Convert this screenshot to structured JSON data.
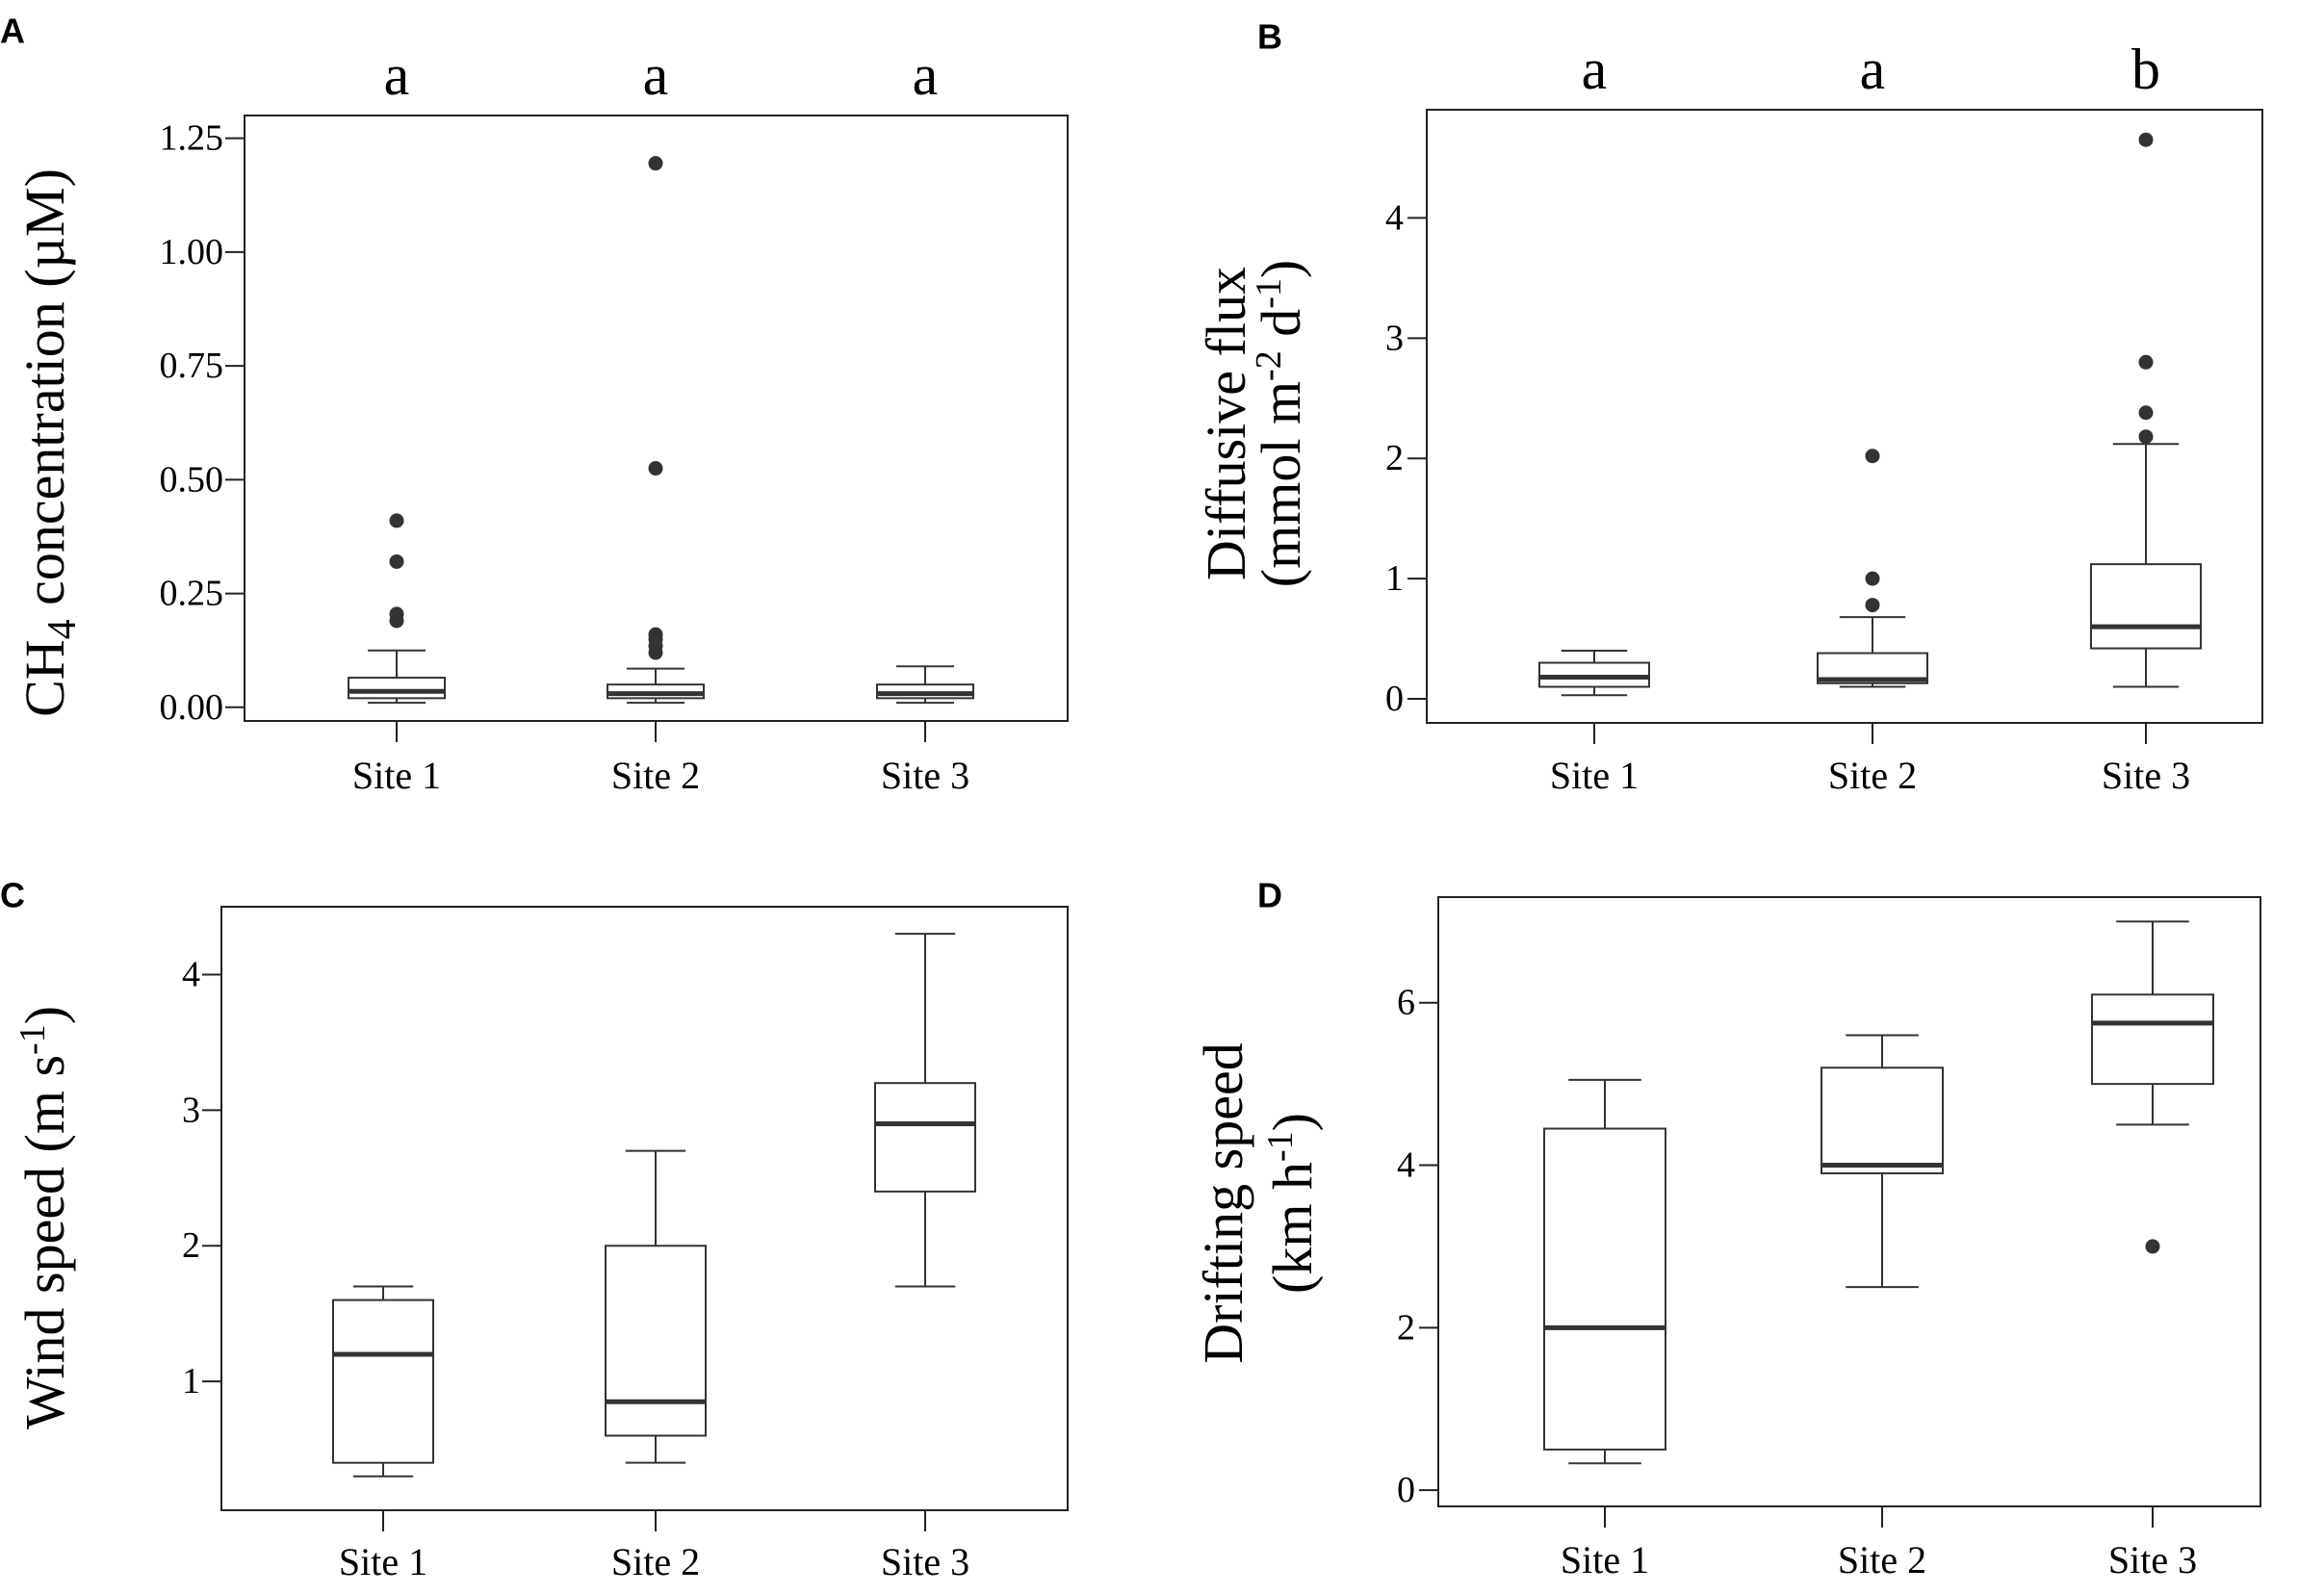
{
  "chart_data": [
    {
      "type": "box",
      "panel": "A",
      "ylabel_parts": [
        "CH",
        "4",
        " concentration (µM)"
      ],
      "categories": [
        "Site 1",
        "Site 2",
        "Site 3"
      ],
      "yticks": [
        "0.00",
        "0.25",
        "0.50",
        "0.75",
        "1.00",
        "1.25"
      ],
      "ylim": [
        -0.03,
        1.3
      ],
      "significance": [
        "a",
        "a",
        "a"
      ],
      "boxes": [
        {
          "whisker_low": 0.01,
          "q1": 0.02,
          "median": 0.035,
          "q3": 0.065,
          "whisker_high": 0.125,
          "outliers": [
            0.19,
            0.205,
            0.32,
            0.41
          ]
        },
        {
          "whisker_low": 0.01,
          "q1": 0.02,
          "median": 0.03,
          "q3": 0.05,
          "whisker_high": 0.085,
          "outliers": [
            0.12,
            0.135,
            0.15,
            0.16,
            0.525,
            1.195
          ]
        },
        {
          "whisker_low": 0.01,
          "q1": 0.02,
          "median": 0.03,
          "q3": 0.05,
          "whisker_high": 0.09,
          "outliers": []
        }
      ]
    },
    {
      "type": "box",
      "panel": "B",
      "ylabel_parts": [
        "Diffusive flux",
        "(mmol m",
        "-2",
        " d",
        "-1",
        ")"
      ],
      "categories": [
        "Site 1",
        "Site 2",
        "Site 3"
      ],
      "yticks": [
        "0",
        "1",
        "2",
        "3",
        "4"
      ],
      "ylim": [
        -0.2,
        4.9
      ],
      "significance": [
        "a",
        "a",
        "b"
      ],
      "boxes": [
        {
          "whisker_low": 0.03,
          "q1": 0.1,
          "median": 0.18,
          "q3": 0.3,
          "whisker_high": 0.4,
          "outliers": []
        },
        {
          "whisker_low": 0.1,
          "q1": 0.13,
          "median": 0.16,
          "q3": 0.38,
          "whisker_high": 0.68,
          "outliers": [
            0.78,
            1.0,
            2.02
          ]
        },
        {
          "whisker_low": 0.1,
          "q1": 0.42,
          "median": 0.6,
          "q3": 1.12,
          "whisker_high": 2.12,
          "outliers": [
            2.18,
            2.38,
            2.8,
            4.65
          ]
        }
      ]
    },
    {
      "type": "box",
      "panel": "C",
      "ylabel_parts": [
        "Wind speed (m s",
        "-1",
        ")"
      ],
      "categories": [
        "Site 1",
        "Site 2",
        "Site 3"
      ],
      "yticks": [
        "1",
        "2",
        "3",
        "4"
      ],
      "ylim": [
        0.05,
        4.5
      ],
      "significance": [],
      "boxes": [
        {
          "whisker_low": 0.3,
          "q1": 0.4,
          "median": 1.2,
          "q3": 1.6,
          "whisker_high": 1.7,
          "outliers": []
        },
        {
          "whisker_low": 0.4,
          "q1": 0.6,
          "median": 0.85,
          "q3": 2.0,
          "whisker_high": 2.7,
          "outliers": []
        },
        {
          "whisker_low": 1.7,
          "q1": 2.4,
          "median": 2.9,
          "q3": 3.2,
          "whisker_high": 4.3,
          "outliers": []
        }
      ]
    },
    {
      "type": "box",
      "panel": "D",
      "ylabel_parts": [
        "Drifting speed",
        "(km h",
        "-1",
        ")"
      ],
      "categories": [
        "Site 1",
        "Site 2",
        "Site 3"
      ],
      "yticks": [
        "0",
        "2",
        "4",
        "6"
      ],
      "ylim": [
        -0.2,
        7.3
      ],
      "significance": [],
      "boxes": [
        {
          "whisker_low": 0.33,
          "q1": 0.5,
          "median": 2.0,
          "q3": 4.45,
          "whisker_high": 5.05,
          "outliers": []
        },
        {
          "whisker_low": 2.5,
          "q1": 3.9,
          "median": 4.0,
          "q3": 5.2,
          "whisker_high": 5.6,
          "outliers": []
        },
        {
          "whisker_low": 4.5,
          "q1": 5.0,
          "median": 5.75,
          "q3": 6.1,
          "whisker_high": 7.0,
          "outliers": [
            3.0
          ]
        }
      ]
    }
  ]
}
